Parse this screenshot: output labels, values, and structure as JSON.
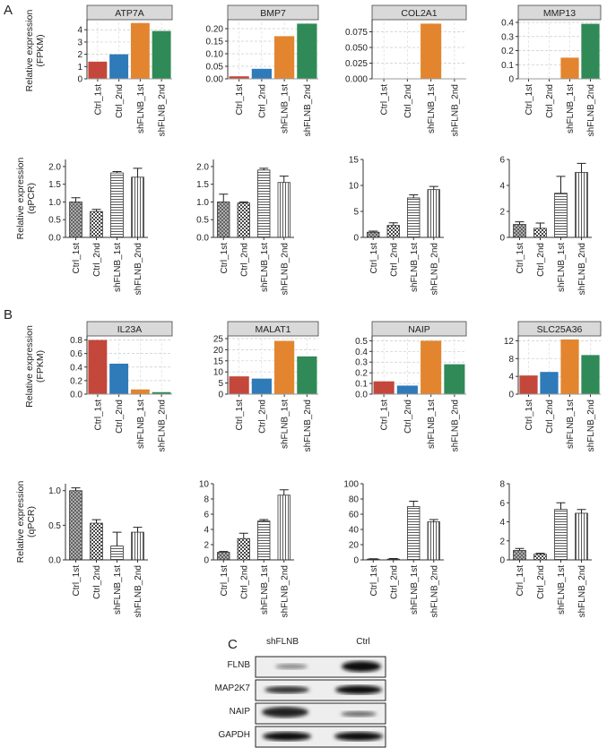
{
  "panel_labels": [
    "A",
    "B"
  ],
  "blot": {
    "label": "C",
    "columns": [
      "shFLNB",
      "Ctrl"
    ],
    "rows": [
      "FLNB",
      "MAP2K7",
      "NAIP",
      "GAPDH"
    ]
  },
  "chart_data": [
    {
      "type": "bar",
      "title": "ATP7A",
      "ylabel": [
        "Relative expression",
        "(FPKM)"
      ],
      "categories": [
        "Ctrl_1st",
        "Ctrl_2nd",
        "shFLNB_1st",
        "shFLNB_2nd"
      ],
      "values": [
        1.4,
        2.0,
        4.55,
        3.9
      ],
      "colors": [
        "#c3473a",
        "#2f7ab9",
        "#e3852f",
        "#2f8a57"
      ],
      "ylim": [
        0,
        4.6
      ],
      "yticks": [
        0,
        1,
        2,
        3,
        4
      ],
      "grid": true
    },
    {
      "type": "bar",
      "title": "BMP7",
      "categories": [
        "Ctrl_1st",
        "Ctrl_2nd",
        "shFLNB_1st",
        "shFLNB_2nd"
      ],
      "values": [
        0.01,
        0.04,
        0.17,
        0.22
      ],
      "colors": [
        "#c3473a",
        "#2f7ab9",
        "#e3852f",
        "#2f8a57"
      ],
      "ylim": [
        0,
        0.225
      ],
      "yticks": [
        {
          "value": 0,
          "label": "0.00"
        },
        0.05,
        {
          "value": 0.1,
          "label": "0.10"
        },
        0.15,
        {
          "value": 0.2,
          "label": "0.20"
        }
      ],
      "grid": true
    },
    {
      "type": "bar",
      "title": "COL2A1",
      "categories": [
        "Ctrl_1st",
        "Ctrl_2nd",
        "shFLNB_1st",
        "shFLNB_2nd"
      ],
      "values": [
        0,
        0,
        0.088,
        0
      ],
      "colors": [
        "#c3473a",
        "#2f7ab9",
        "#e3852f",
        "#2f8a57"
      ],
      "ylim": [
        0,
        0.09
      ],
      "yticks": [
        {
          "value": 0,
          "label": "0.000"
        },
        0.025,
        {
          "value": 0.05,
          "label": "0.050"
        },
        0.075
      ],
      "grid": true
    },
    {
      "type": "bar",
      "title": "MMP13",
      "categories": [
        "Ctrl_1st",
        "Ctrl_2nd",
        "shFLNB_1st",
        "shFLNB_2nd"
      ],
      "values": [
        0,
        0,
        0.15,
        0.39
      ],
      "colors": [
        "#c3473a",
        "#2f7ab9",
        "#e3852f",
        "#2f8a57"
      ],
      "ylim": [
        0,
        0.4
      ],
      "yticks": [
        0,
        0.1,
        0.2,
        0.3,
        0.4
      ],
      "grid": true
    },
    {
      "type": "bar",
      "ylabel": [
        "Relative expression",
        "(qPCR)"
      ],
      "categories": [
        "Ctrl_1st",
        "Ctrl_2nd",
        "shFLNB_1st",
        "shFLNB_2nd"
      ],
      "values": [
        1.0,
        0.73,
        1.82,
        1.7
      ],
      "errors": [
        0.12,
        0.06,
        0.04,
        0.25
      ],
      "patterns": [
        "crosshatch",
        "checker",
        "hlines",
        "vlines"
      ],
      "ylim": [
        0,
        2.2
      ],
      "yticks": [
        {
          "value": 0,
          "label": "0.0"
        },
        0.5,
        {
          "value": 1,
          "label": "1.0"
        },
        1.5,
        {
          "value": 2,
          "label": "2.0"
        }
      ]
    },
    {
      "type": "bar",
      "categories": [
        "Ctrl_1st",
        "Ctrl_2nd",
        "shFLNB_1st",
        "shFLNB_2nd"
      ],
      "values": [
        1.0,
        0.97,
        1.9,
        1.55
      ],
      "errors": [
        0.22,
        0.03,
        0.05,
        0.18
      ],
      "patterns": [
        "crosshatch",
        "checker",
        "hlines",
        "vlines"
      ],
      "ylim": [
        0,
        2.2
      ],
      "yticks": [
        {
          "value": 0,
          "label": "0.0"
        },
        0.5,
        {
          "value": 1,
          "label": "1.0"
        },
        1.5,
        {
          "value": 2,
          "label": "2.0"
        }
      ]
    },
    {
      "type": "bar",
      "categories": [
        "Ctrl_1st",
        "Ctrl_2nd",
        "shFLNB_1st",
        "shFLNB_2nd"
      ],
      "values": [
        1.0,
        2.3,
        7.6,
        9.2
      ],
      "errors": [
        0.2,
        0.5,
        0.6,
        0.6
      ],
      "patterns": [
        "crosshatch",
        "checker",
        "hlines",
        "vlines"
      ],
      "ylim": [
        0,
        15
      ],
      "yticks": [
        0,
        5,
        10,
        15
      ]
    },
    {
      "type": "bar",
      "categories": [
        "Ctrl_1st",
        "Ctrl_2nd",
        "shFLNB_1st",
        "shFLNB_2nd"
      ],
      "values": [
        1.0,
        0.7,
        3.4,
        5.0
      ],
      "errors": [
        0.2,
        0.4,
        1.3,
        0.7
      ],
      "patterns": [
        "crosshatch",
        "checker",
        "hlines",
        "vlines"
      ],
      "ylim": [
        0,
        6
      ],
      "yticks": [
        0,
        2,
        4,
        6
      ]
    },
    {
      "type": "bar",
      "title": "IL23A",
      "ylabel": [
        "Relative expression",
        "(FPKM)"
      ],
      "categories": [
        "Ctrl_1st",
        "Ctrl_2nd",
        "shFLNB_1st",
        "shFLNB_2nd"
      ],
      "values": [
        0.8,
        0.45,
        0.07,
        0.03
      ],
      "colors": [
        "#c3473a",
        "#2f7ab9",
        "#e3852f",
        "#2f8a57"
      ],
      "ylim": [
        0,
        0.82
      ],
      "yticks": [
        {
          "value": 0,
          "label": "0.0"
        },
        0.2,
        0.4,
        0.6,
        0.8
      ],
      "grid": true
    },
    {
      "type": "bar",
      "title": "MALAT1",
      "categories": [
        "Ctrl_1st",
        "Ctrl_2nd",
        "shFLNB_1st",
        "shFLNB_2nd"
      ],
      "values": [
        8,
        7,
        24,
        17
      ],
      "colors": [
        "#c3473a",
        "#2f7ab9",
        "#e3852f",
        "#2f8a57"
      ],
      "ylim": [
        0,
        25
      ],
      "yticks": [
        0,
        5,
        10,
        15,
        20,
        25
      ],
      "grid": true
    },
    {
      "type": "bar",
      "title": "NAIP",
      "categories": [
        "Ctrl_1st",
        "Ctrl_2nd",
        "shFLNB_1st",
        "shFLNB_2nd"
      ],
      "values": [
        0.12,
        0.08,
        0.5,
        0.28
      ],
      "colors": [
        "#c3473a",
        "#2f7ab9",
        "#e3852f",
        "#2f8a57"
      ],
      "ylim": [
        0,
        0.52
      ],
      "yticks": [
        {
          "value": 0,
          "label": "0.0"
        },
        0.1,
        0.2,
        0.3,
        0.4,
        0.5
      ],
      "grid": true
    },
    {
      "type": "bar",
      "title": "SLC25A36",
      "categories": [
        "Ctrl_1st",
        "Ctrl_2nd",
        "shFLNB_1st",
        "shFLNB_2nd"
      ],
      "values": [
        4.2,
        5.0,
        12.3,
        8.8
      ],
      "colors": [
        "#c3473a",
        "#2f7ab9",
        "#e3852f",
        "#2f8a57"
      ],
      "ylim": [
        0,
        12.5
      ],
      "yticks": [
        0,
        4,
        8,
        12
      ],
      "grid": true
    },
    {
      "type": "bar",
      "ylabel": [
        "Relative expression",
        "(qPCR)"
      ],
      "categories": [
        "Ctrl_1st",
        "Ctrl_2nd",
        "shFLNB_1st",
        "shFLNB_2nd"
      ],
      "values": [
        1.0,
        0.53,
        0.2,
        0.4
      ],
      "errors": [
        0.04,
        0.05,
        0.2,
        0.07
      ],
      "patterns": [
        "crosshatch",
        "checker",
        "hlines",
        "vlines"
      ],
      "ylim": [
        0,
        1.1
      ],
      "yticks": [
        {
          "value": 0,
          "label": "0.0"
        },
        0.5,
        {
          "value": 1,
          "label": "1.0"
        }
      ]
    },
    {
      "type": "bar",
      "categories": [
        "Ctrl_1st",
        "Ctrl_2nd",
        "shFLNB_1st",
        "shFLNB_2nd"
      ],
      "values": [
        1.0,
        2.8,
        5.1,
        8.5
      ],
      "errors": [
        0.1,
        0.7,
        0.2,
        0.7
      ],
      "patterns": [
        "crosshatch",
        "checker",
        "hlines",
        "vlines"
      ],
      "ylim": [
        0,
        10
      ],
      "yticks": [
        0,
        2,
        4,
        6,
        8,
        10
      ]
    },
    {
      "type": "bar",
      "categories": [
        "Ctrl_1st",
        "Ctrl_2nd",
        "shFLNB_1st",
        "shFLNB_2nd"
      ],
      "values": [
        1,
        1,
        70,
        50
      ],
      "errors": [
        0.5,
        0.8,
        7,
        3
      ],
      "patterns": [
        "crosshatch",
        "checker",
        "hlines",
        "vlines"
      ],
      "ylim": [
        0,
        100
      ],
      "yticks": [
        0,
        20,
        40,
        60,
        80,
        100
      ]
    },
    {
      "type": "bar",
      "categories": [
        "Ctrl_1st",
        "Ctrl_2nd",
        "shFLNB_1st",
        "shFLNB_2nd"
      ],
      "values": [
        1.0,
        0.6,
        5.3,
        4.9
      ],
      "errors": [
        0.2,
        0.1,
        0.7,
        0.4
      ],
      "patterns": [
        "crosshatch",
        "checker",
        "hlines",
        "vlines"
      ],
      "ylim": [
        0,
        8
      ],
      "yticks": [
        0,
        2,
        4,
        6,
        8
      ]
    }
  ]
}
